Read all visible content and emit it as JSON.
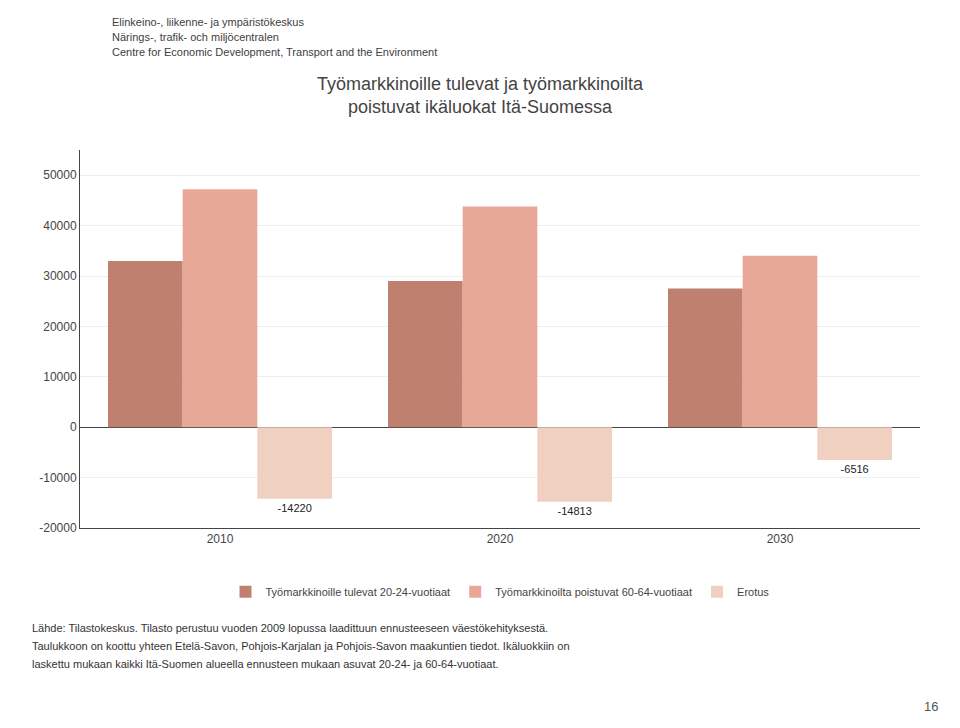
{
  "chart_data": {
    "type": "bar",
    "title": "Työmarkkinoille tulevat ja työmarkkinoilta\npoistuvat ikäluokat Itä-Suomessa",
    "categories": [
      "2010",
      "2020",
      "2030"
    ],
    "series": [
      {
        "name": "Työmarkkinoille tulevat 20-24-vuotiaat",
        "color": "#c08070",
        "values": [
          33000,
          29000,
          27500
        ]
      },
      {
        "name": "Työmarkkinoilta poistuvat 60-64-vuotiaat",
        "color": "#e8a898",
        "values": [
          47220,
          43813,
          34016
        ]
      },
      {
        "name": "Erotus",
        "color": "#f0d0c0",
        "values": [
          -14220,
          -14813,
          -6516
        ],
        "data_labels": true
      }
    ],
    "ylim": [
      -20000,
      55000
    ],
    "yticks": [
      -20000,
      -10000,
      0,
      10000,
      20000,
      30000,
      40000,
      50000
    ],
    "grid": true,
    "legend": "bottom",
    "annotations": {
      "header": [
        "Elinkeino-, liikenne- ja ympäristökeskus",
        "Närings-, trafik- och miljöcentralen",
        "Centre for Economic Development, Transport and the Environment"
      ],
      "footer": [
        "Lähde: Tilastokeskus. Tilasto perustuu vuoden 2009 lopussa laadittuun ennusteeseen väestökehityksestä.",
        "Taulukkoon on koottu yhteen Etelä-Savon, Pohjois-Karjalan ja Pohjois-Savon maakuntien tiedot. Ikäluokkiin on",
        "laskettu mukaan kaikki Itä-Suomen alueella ennusteen mukaan asuvat 20-24- ja 60-64-vuotiaat."
      ],
      "page": "16"
    }
  }
}
